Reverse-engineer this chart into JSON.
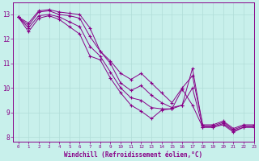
{
  "title": "",
  "xlabel": "Windchill (Refroidissement éolien,°C)",
  "ylabel": "",
  "xlim": [
    -0.5,
    23
  ],
  "ylim": [
    7.8,
    13.5
  ],
  "bg_color": "#c8f0eb",
  "line_color": "#880088",
  "grid_color": "#b0ddd8",
  "xtick_labels": [
    "0",
    "1",
    "2",
    "3",
    "4",
    "5",
    "6",
    "7",
    "8",
    "9",
    "10",
    "11",
    "12",
    "13",
    "14",
    "15",
    "16",
    "17",
    "18",
    "19",
    "20",
    "21",
    "22",
    "23"
  ],
  "yticks": [
    8,
    9,
    10,
    11,
    12,
    13
  ],
  "series": [
    {
      "x": [
        0,
        1,
        2,
        3,
        4,
        5,
        6,
        7,
        8,
        9,
        10,
        11,
        12,
        13,
        14,
        15,
        16,
        17,
        18,
        19,
        20,
        21,
        22,
        23
      ],
      "y": [
        12.9,
        12.65,
        13.15,
        13.2,
        13.1,
        13.05,
        13.0,
        12.45,
        11.5,
        11.1,
        10.6,
        10.35,
        10.6,
        10.2,
        9.8,
        9.4,
        10.0,
        10.5,
        8.5,
        8.5,
        8.65,
        8.35,
        8.5,
        8.5
      ]
    },
    {
      "x": [
        0,
        1,
        2,
        3,
        4,
        5,
        6,
        7,
        8,
        9,
        10,
        11,
        12,
        13,
        14,
        15,
        16,
        17,
        18,
        19,
        20,
        21,
        22,
        23
      ],
      "y": [
        12.9,
        12.55,
        13.1,
        13.15,
        13.0,
        12.95,
        12.85,
        12.1,
        11.5,
        11.0,
        10.2,
        9.9,
        10.1,
        9.7,
        9.4,
        9.2,
        9.3,
        10.8,
        8.45,
        8.45,
        8.6,
        8.3,
        8.45,
        8.45
      ]
    },
    {
      "x": [
        0,
        1,
        2,
        3,
        4,
        5,
        6,
        7,
        8,
        9,
        10,
        11,
        12,
        13,
        14,
        15,
        16,
        17,
        18,
        19,
        20,
        21,
        22,
        23
      ],
      "y": [
        12.9,
        12.45,
        12.95,
        13.0,
        12.9,
        12.7,
        12.5,
        11.7,
        11.3,
        10.65,
        10.0,
        9.6,
        9.5,
        9.2,
        9.15,
        9.15,
        9.3,
        10.0,
        8.4,
        8.4,
        8.55,
        8.25,
        8.4,
        8.4
      ]
    },
    {
      "x": [
        0,
        1,
        2,
        3,
        4,
        5,
        6,
        7,
        8,
        9,
        10,
        11,
        12,
        13,
        14,
        15,
        16,
        17,
        18,
        19,
        20,
        21,
        22,
        23
      ],
      "y": [
        12.9,
        12.3,
        12.85,
        12.95,
        12.8,
        12.5,
        12.2,
        11.3,
        11.15,
        10.4,
        9.8,
        9.3,
        9.05,
        8.75,
        9.1,
        9.15,
        9.95,
        9.3,
        8.4,
        8.4,
        8.5,
        8.2,
        8.4,
        8.4
      ]
    }
  ]
}
